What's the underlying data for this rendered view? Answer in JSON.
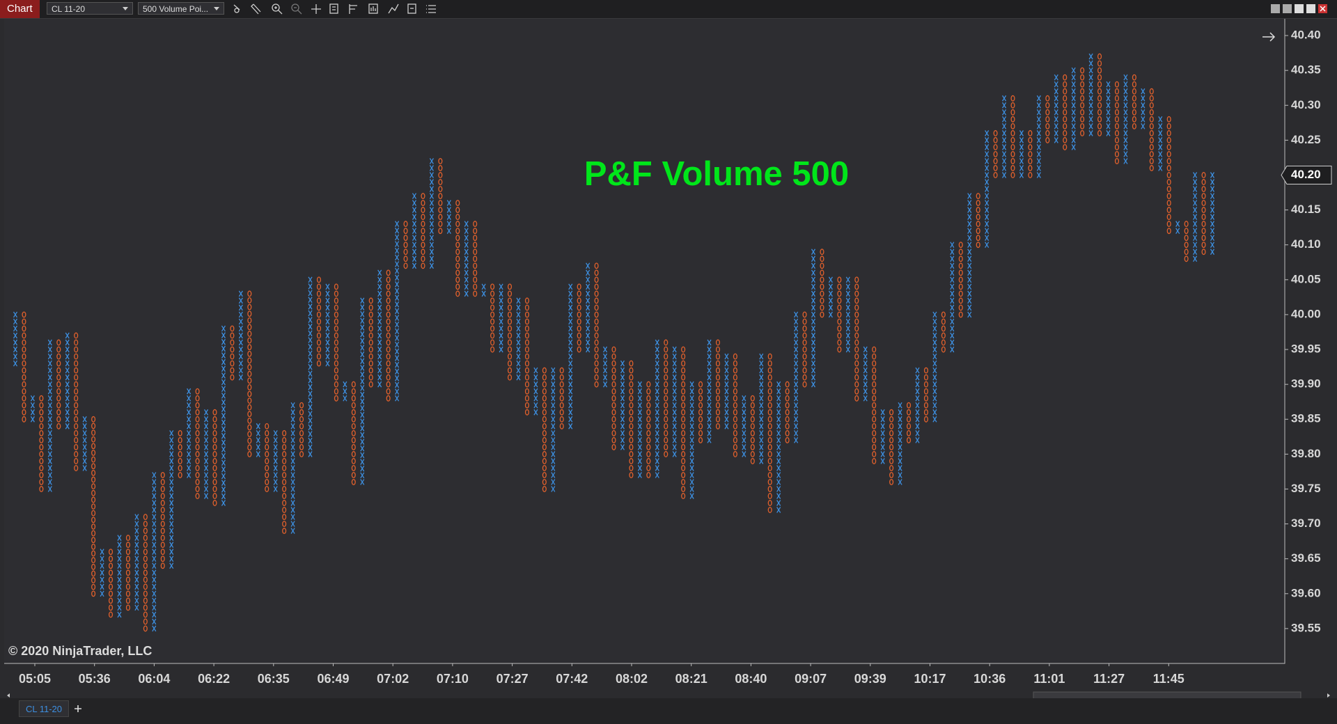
{
  "toolbar": {
    "tab": "Chart",
    "instrument": "CL 11-20",
    "chart_style": "500 Volume Poi..."
  },
  "chart_data": {
    "type": "pnf",
    "title": "P&F Volume 500",
    "x_color": "#3d8fe0",
    "o_color": "#e0602c",
    "title_color": "#00e61a",
    "ylim": [
      39.5,
      40.424
    ],
    "yticks": [
      39.55,
      {
        "value": 39.6,
        "label": "39.60"
      },
      39.65,
      {
        "value": 39.7,
        "label": "39.70"
      },
      39.75,
      {
        "value": 39.8,
        "label": "39.80"
      },
      39.85,
      {
        "value": 39.9,
        "label": "39.90"
      },
      39.95,
      {
        "value": 40.0,
        "label": "40.00"
      },
      40.05,
      {
        "value": 40.1,
        "label": "40.10"
      },
      40.15,
      {
        "value": 40.2,
        "label": "40.20"
      },
      40.25,
      {
        "value": 40.3,
        "label": "40.30"
      },
      40.35,
      {
        "value": 40.4,
        "label": "40.40"
      }
    ],
    "x_labels": [
      "05:05",
      "05:36",
      "06:04",
      "06:22",
      "06:35",
      "06:49",
      "07:02",
      "07:10",
      "07:27",
      "07:42",
      "08:02",
      "08:21",
      "08:40",
      "09:07",
      "09:39",
      "10:17",
      "10:36",
      "11:01",
      "11:27",
      "11:45"
    ],
    "current_price": {
      "value": 40.2,
      "label": "40.20"
    },
    "turning_points": [
      39.93,
      40.0,
      39.85,
      39.88,
      39.75,
      39.96,
      39.84,
      39.97,
      39.78,
      39.85,
      39.6,
      39.66,
      39.57,
      39.68,
      39.58,
      39.71,
      39.55,
      39.77,
      39.64,
      39.83,
      39.77,
      39.89,
      39.74,
      39.86,
      39.73,
      39.98,
      39.91,
      40.03,
      39.8,
      39.84,
      39.75,
      39.83,
      39.69,
      39.87,
      39.8,
      40.05,
      39.93,
      40.04,
      39.88,
      39.9,
      39.76,
      40.02,
      39.9,
      40.06,
      39.88,
      40.13,
      40.07,
      40.17,
      40.07,
      40.22,
      40.12,
      40.16,
      40.03,
      40.13,
      40.03,
      40.04,
      39.95,
      40.04,
      39.91,
      40.02,
      39.86,
      39.92,
      39.75,
      39.92,
      39.84,
      40.04,
      39.95,
      40.07,
      39.9,
      39.95,
      39.81,
      39.93,
      39.77,
      39.9,
      39.77,
      39.96,
      39.8,
      39.95,
      39.74,
      39.9,
      39.82,
      39.96,
      39.84,
      39.94,
      39.8,
      39.88,
      39.79,
      39.94,
      39.72,
      39.9,
      39.82,
      40.0,
      39.9,
      40.09,
      40.0,
      40.05,
      39.95,
      40.05,
      39.88,
      39.95,
      39.79,
      39.86,
      39.76,
      39.87,
      39.82,
      39.92,
      39.85,
      40.0,
      39.95,
      40.1,
      40.0,
      40.17,
      40.1,
      40.26,
      40.2,
      40.31,
      40.2,
      40.26,
      40.2,
      40.31,
      40.25,
      40.34,
      40.24,
      40.35,
      40.26,
      40.37,
      40.26,
      40.33,
      40.22,
      40.34,
      40.27,
      40.32,
      40.21,
      40.28,
      40.12,
      40.13,
      40.08,
      40.2,
      40.09,
      40.2
    ]
  },
  "footer": {
    "copyright": "© 2020 NinjaTrader, LLC",
    "tab": "CL 11-20"
  }
}
